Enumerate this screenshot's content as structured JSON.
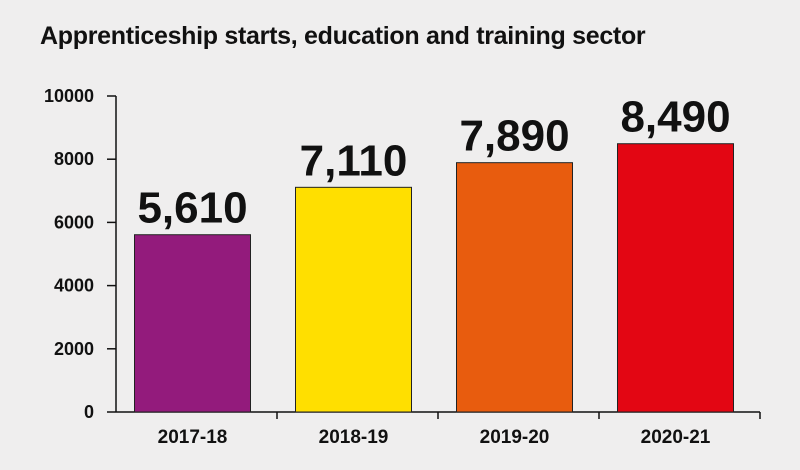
{
  "chart_data": {
    "type": "bar",
    "title": "Apprenticeship starts, education and training sector",
    "categories": [
      "2017-18",
      "2018-19",
      "2019-20",
      "2020-21"
    ],
    "values": [
      5610,
      7110,
      7890,
      8490
    ],
    "data_labels": [
      "5,610",
      "7,110",
      "7,890",
      "8,490"
    ],
    "bar_colors": [
      "#931b7c",
      "#ffdf00",
      "#e85c0e",
      "#e30613"
    ],
    "ylim": [
      0,
      10000
    ],
    "yticks": [
      0,
      2000,
      4000,
      6000,
      8000,
      10000
    ],
    "xlabel": "",
    "ylabel": "",
    "grid": false,
    "legend": "none"
  }
}
